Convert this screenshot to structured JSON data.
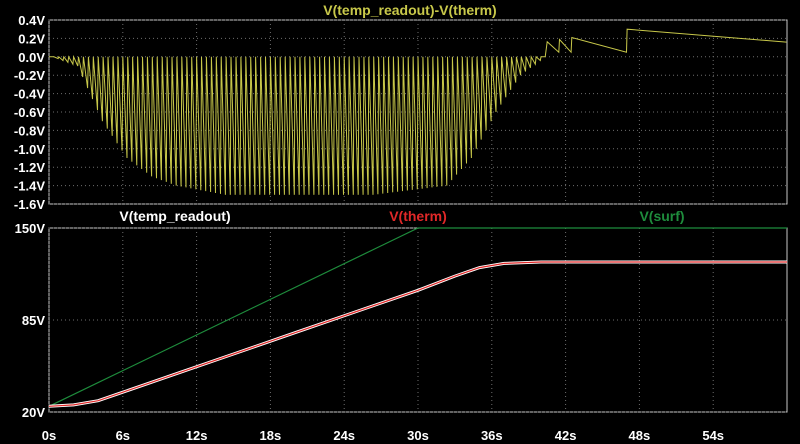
{
  "colors": {
    "background": "#000000",
    "grid": "#6e6e6e",
    "pane_border": "#c8c8c8",
    "diff_trace": "#c8c84a",
    "temp_readout": "#ffffff",
    "therm": "#e02828",
    "surf": "#1e8c3c"
  },
  "chart_data": [
    {
      "type": "line",
      "title": "V(temp_readout)-V(therm)",
      "x_unit": "s",
      "y_unit": "V",
      "xlim": [
        0,
        60
      ],
      "ylim": [
        -1.6,
        0.4
      ],
      "y_ticks": [
        "0.4V",
        "0.2V",
        "0.0V",
        "-0.2V",
        "-0.4V",
        "-0.6V",
        "-0.8V",
        "-1.0V",
        "-1.2V",
        "-1.4V",
        "-1.6V"
      ],
      "y_tick_values": [
        0.4,
        0.2,
        0.0,
        -0.2,
        -0.4,
        -0.6,
        -0.8,
        -1.0,
        -1.2,
        -1.4,
        -1.6
      ],
      "grid": true,
      "series": [
        {
          "name": "V(temp_readout)-V(therm)",
          "description": "sawtooth oscillation; upper envelope ~0V, lower envelope follows values below",
          "envelope_x": [
            0,
            2,
            4,
            6,
            8,
            10,
            14,
            20,
            26,
            32,
            34,
            36,
            38,
            40
          ],
          "envelope_lower": [
            0.0,
            -0.1,
            -0.7,
            -1.1,
            -1.3,
            -1.4,
            -1.5,
            -1.5,
            -1.5,
            -1.4,
            -1.1,
            -0.6,
            -0.2,
            0.0
          ],
          "decay_x": [
            40,
            42,
            47,
            60
          ],
          "decay_y": [
            0.15,
            0.2,
            0.3,
            0.16
          ]
        }
      ]
    },
    {
      "type": "line",
      "x_unit": "s",
      "y_unit": "V",
      "xlim": [
        0,
        60
      ],
      "ylim": [
        20,
        150
      ],
      "x_ticks": [
        "0s",
        "6s",
        "12s",
        "18s",
        "24s",
        "30s",
        "36s",
        "42s",
        "48s",
        "54s"
      ],
      "x_tick_values": [
        0,
        6,
        12,
        18,
        24,
        30,
        36,
        42,
        48,
        54
      ],
      "y_ticks": [
        "150V",
        "85V",
        "20V"
      ],
      "y_tick_values": [
        150,
        85,
        20
      ],
      "grid": true,
      "series": [
        {
          "name": "V(temp_readout)",
          "color_key": "temp_readout",
          "x": [
            0,
            2,
            4,
            6,
            10,
            15,
            20,
            25,
            30,
            33,
            35,
            37,
            40,
            50,
            60
          ],
          "y": [
            24,
            25,
            28,
            34,
            46,
            61,
            76,
            91,
            106,
            116,
            122,
            125,
            126,
            126,
            126
          ]
        },
        {
          "name": "V(therm)",
          "color_key": "therm",
          "x": [
            0,
            2,
            4,
            6,
            10,
            15,
            20,
            25,
            30,
            33,
            35,
            37,
            40,
            50,
            60
          ],
          "y": [
            24,
            25,
            28,
            34,
            46,
            61,
            76,
            91,
            106,
            116,
            122,
            125,
            126,
            126,
            126
          ]
        },
        {
          "name": "V(surf)",
          "color_key": "surf",
          "x": [
            0,
            30,
            60
          ],
          "y": [
            24,
            150,
            150
          ]
        }
      ]
    }
  ]
}
